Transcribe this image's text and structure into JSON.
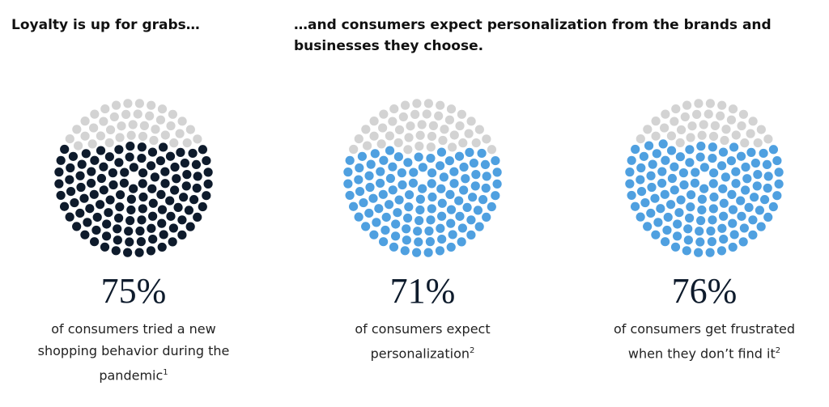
{
  "headings": [
    "Loyalty is up for grabs…",
    "…and consumers expect personalization from the brands and businesses they choose."
  ],
  "chart_data": [
    {
      "type": "dot-circle",
      "values": [
        75
      ],
      "value_labels": [
        "75%"
      ],
      "color": "#0e1b2c",
      "empty_color": "#d3d3d3",
      "caption": "of consumers tried a new shopping behavior during the pandemic",
      "footnote": "1"
    },
    {
      "type": "dot-circle",
      "values": [
        71
      ],
      "value_labels": [
        "71%"
      ],
      "color": "#4fa0e0",
      "empty_color": "#d3d3d3",
      "caption": "of consumers expect personalization",
      "footnote": "2"
    },
    {
      "type": "dot-circle",
      "values": [
        76
      ],
      "value_labels": [
        "76%"
      ],
      "color": "#4fa0e0",
      "empty_color": "#d3d3d3",
      "caption": "of consumers get frustrated when they don’t find it",
      "footnote": "2"
    }
  ]
}
